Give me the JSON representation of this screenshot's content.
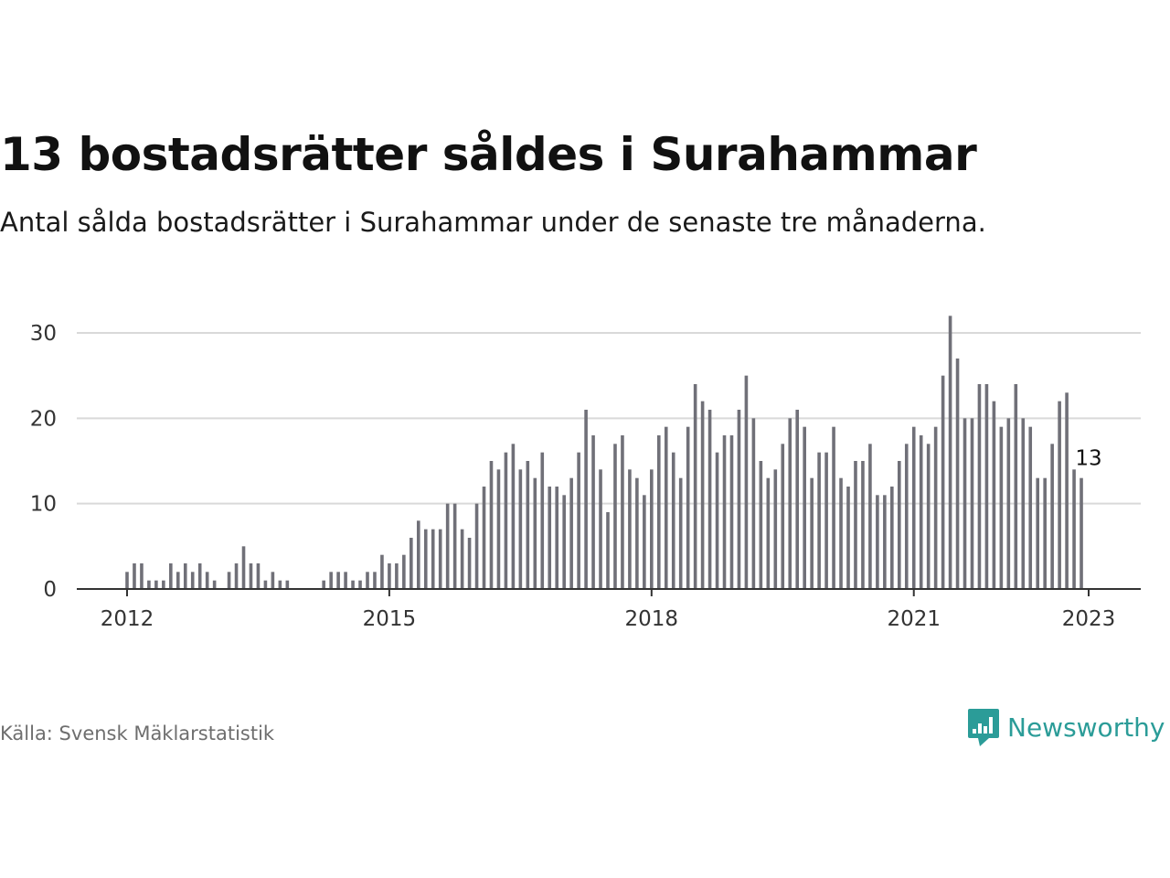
{
  "header": {
    "title": "13 bostadsrätter såldes i Surahammar",
    "subtitle": "Antal sålda bostadsrätter i Surahammar under de senaste tre månaderna."
  },
  "footer": {
    "source": "Källa: Svensk Mäklarstatistik",
    "brand": "Newsworthy"
  },
  "colors": {
    "bar": "#707078",
    "highlight": "#2b9c98",
    "grid": "#d9d9d9",
    "axis": "#333333"
  },
  "chart_data": {
    "type": "bar",
    "title": "13 bostadsrätter såldes i Surahammar",
    "subtitle": "Antal sålda bostadsrätter i Surahammar under de senaste tre månaderna.",
    "xlabel": "",
    "ylabel": "",
    "start": "2012-01",
    "end": "2023-01",
    "ylim": [
      0,
      30
    ],
    "yticks": [
      0,
      10,
      20,
      30
    ],
    "xticks": [
      "2012",
      "2015",
      "2018",
      "2021",
      "2023"
    ],
    "grid": true,
    "legend": "none",
    "highlight": {
      "x": "2023-01",
      "value": 13,
      "label": "13"
    },
    "series": [
      {
        "values": [
          2,
          3,
          3,
          1,
          1,
          1,
          3,
          2,
          3,
          2,
          3,
          2,
          1,
          0,
          2,
          3,
          5,
          3,
          3,
          1,
          2,
          1,
          1,
          0,
          0,
          0,
          0,
          1,
          2,
          2,
          2,
          1,
          1,
          2,
          2,
          4,
          3,
          3,
          4,
          6,
          8,
          7,
          7,
          7,
          10,
          10,
          7,
          6,
          10,
          12,
          15,
          14,
          16,
          17,
          14,
          15,
          13,
          16,
          12,
          12,
          11,
          13,
          16,
          21,
          18,
          14,
          9,
          17,
          18,
          14,
          13,
          11,
          14,
          18,
          19,
          16,
          13,
          19,
          24,
          22,
          21,
          16,
          18,
          18,
          21,
          25,
          20,
          15,
          13,
          14,
          17,
          20,
          21,
          19,
          13,
          16,
          16,
          19,
          13,
          12,
          15,
          15,
          17,
          11,
          11,
          12,
          15,
          17,
          19,
          18,
          17,
          19,
          25,
          32,
          27,
          20,
          20,
          24,
          24,
          22,
          19,
          20,
          24,
          20,
          19,
          13,
          13,
          17,
          22,
          23,
          14,
          13
        ]
      }
    ]
  }
}
